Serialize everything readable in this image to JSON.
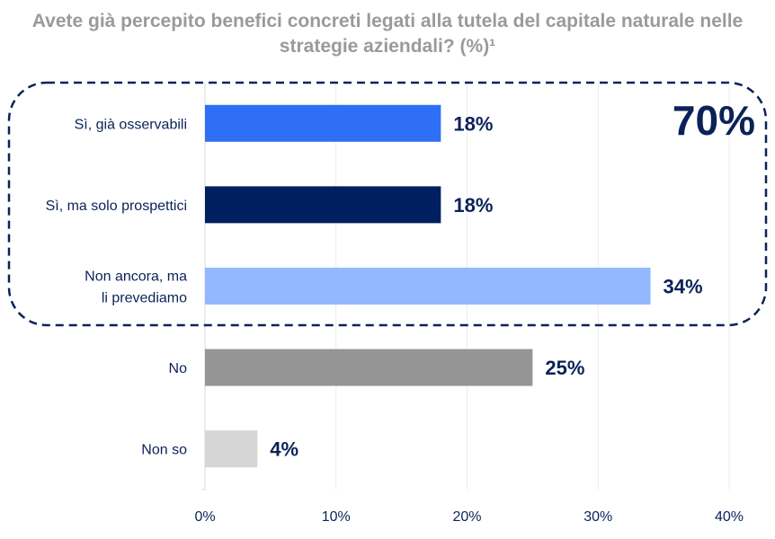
{
  "chart_data": {
    "type": "bar",
    "orientation": "horizontal",
    "title": "Avete già percepito benefici concreti legati alla tutela del capitale naturale nelle strategie aziendali? (%)¹",
    "categories": [
      "Sì, già osservabili",
      "Sì, ma solo prospettici",
      "Non ancora, ma li prevediamo",
      "No",
      "Non so"
    ],
    "values": [
      18,
      18,
      34,
      25,
      4
    ],
    "data_labels": [
      "18%",
      "18%",
      "34%",
      "25%",
      "4%"
    ],
    "colors": [
      "#2e6ff5",
      "#001f60",
      "#94b8ff",
      "#959595",
      "#d6d6d6"
    ],
    "xlim": [
      0,
      40
    ],
    "x_ticks": [
      0,
      10,
      20,
      30,
      40
    ],
    "x_tick_labels": [
      "0%",
      "10%",
      "20%",
      "30%",
      "40%"
    ],
    "grid": true,
    "annotation": {
      "text": "70%",
      "groups": [
        "Sì, già osservabili",
        "Sì, ma solo prospettici",
        "Non ancora, ma li prevediamo"
      ],
      "style": "dashed-rounded-box",
      "color": "#0b2259"
    }
  }
}
